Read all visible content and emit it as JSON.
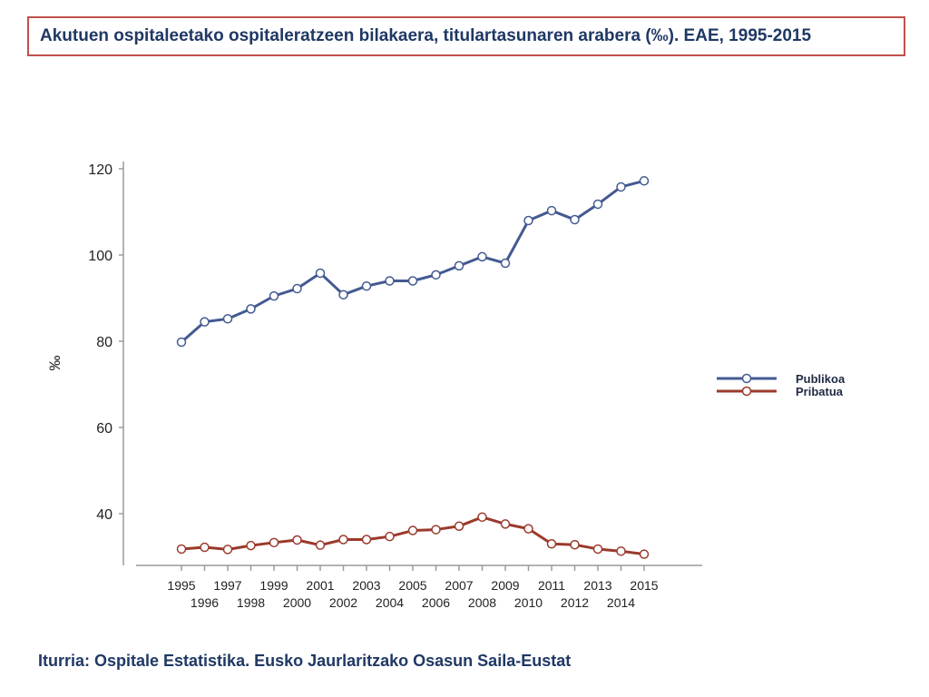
{
  "title": "Akutuen ospitaleetako  ospitaleratzeen  bilakaera, titulartasunaren arabera (‰). EAE, 1995-2015",
  "source": "Iturria: Ospitale Estatistika. Eusko Jaurlaritzako Osasun Saila-Eustat",
  "chart_data": {
    "type": "line",
    "title": "",
    "xlabel": "",
    "ylabel": "‰",
    "ylim": [
      29,
      121
    ],
    "yticks": [
      40,
      60,
      80,
      100,
      120
    ],
    "grid": false,
    "legend_position": "right",
    "x": [
      1995,
      1996,
      1997,
      1998,
      1999,
      2000,
      2001,
      2002,
      2003,
      2004,
      2005,
      2006,
      2007,
      2008,
      2009,
      2010,
      2011,
      2012,
      2013,
      2014,
      2015
    ],
    "series": [
      {
        "name": "Publikoa",
        "color": "#435a91",
        "values": [
          79.8,
          84.5,
          85.2,
          87.5,
          90.5,
          92.2,
          95.8,
          90.8,
          92.8,
          94.0,
          94.0,
          95.4,
          97.5,
          99.6,
          98.1,
          108.0,
          110.3,
          108.2,
          111.8,
          115.8,
          117.2
        ]
      },
      {
        "name": "Pribatua",
        "color": "#9b3a2c",
        "values": [
          31.8,
          32.2,
          31.7,
          32.6,
          33.3,
          33.9,
          32.7,
          34.0,
          34.0,
          34.7,
          36.1,
          36.3,
          37.1,
          39.2,
          37.6,
          36.5,
          33.0,
          32.8,
          31.8,
          31.3,
          30.6
        ]
      }
    ]
  }
}
